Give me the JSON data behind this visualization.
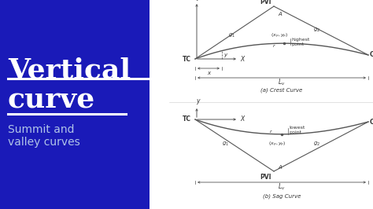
{
  "blue_color": "#1a1ab8",
  "white": "#ffffff",
  "subtitle_color": "#b0c4e8",
  "line_color": "#555555",
  "text_color": "#333333",
  "title1": "Vertical",
  "title2": "curve",
  "sub1": "Summit and",
  "sub2": "valley curves",
  "caption1": "(a) Crest Curve",
  "caption2": "(b) Sag Curve"
}
